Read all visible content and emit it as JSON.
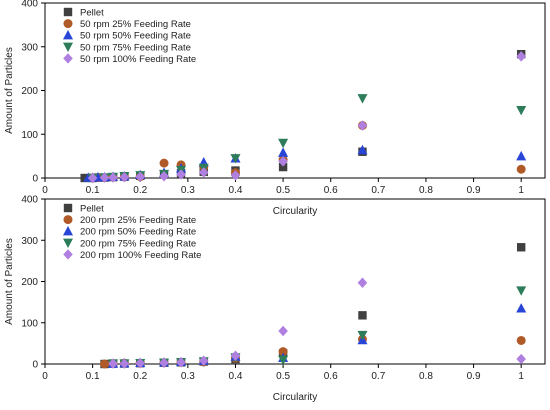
{
  "chart_data": [
    {
      "type": "scatter",
      "panel": "top",
      "title": "",
      "xlabel": "Circularity",
      "ylabel": "Amount of Particles",
      "xlim": [
        0,
        1.05
      ],
      "ylim": [
        0,
        400
      ],
      "xticks": [
        "0",
        "0.1",
        "0.2",
        "0.3",
        "0.4",
        "0.5",
        "0.6",
        "0.7",
        "0.8",
        "0.9",
        "1"
      ],
      "yticks": [
        "0",
        "100",
        "200",
        "300",
        "400"
      ],
      "grid": false,
      "legend_position": "top-left",
      "series": [
        {
          "name": "Pellet",
          "marker": "square",
          "color": "#404040",
          "points": [
            [
              0.0833,
              0
            ],
            [
              0.1,
              0
            ],
            [
              0.1111,
              1
            ],
            [
              0.125,
              1
            ],
            [
              0.1429,
              2
            ],
            [
              0.1667,
              3
            ],
            [
              0.2,
              5
            ],
            [
              0.25,
              8
            ],
            [
              0.2857,
              11
            ],
            [
              0.3333,
              14
            ],
            [
              0.4,
              17
            ],
            [
              0.5,
              25
            ],
            [
              0.6667,
              60
            ],
            [
              1.0,
              283
            ]
          ]
        },
        {
          "name": "50 rpm 25% Feeding Rate",
          "marker": "circle",
          "color": "#b05a28",
          "points": [
            [
              0.1,
              0
            ],
            [
              0.1111,
              1
            ],
            [
              0.125,
              1
            ],
            [
              0.1429,
              2
            ],
            [
              0.1667,
              2
            ],
            [
              0.2,
              3
            ],
            [
              0.25,
              34
            ],
            [
              0.2857,
              30
            ],
            [
              0.3333,
              26
            ],
            [
              0.4,
              12
            ],
            [
              0.5,
              42
            ],
            [
              0.6667,
              120
            ],
            [
              1.0,
              20
            ]
          ]
        },
        {
          "name": "50 rpm 50% Feeding Rate",
          "marker": "triangle-up",
          "color": "#2845d8",
          "points": [
            [
              0.0909,
              1
            ],
            [
              0.1,
              1
            ],
            [
              0.1111,
              2
            ],
            [
              0.125,
              2
            ],
            [
              0.1429,
              3
            ],
            [
              0.1667,
              4
            ],
            [
              0.2,
              7
            ],
            [
              0.25,
              12
            ],
            [
              0.2857,
              22
            ],
            [
              0.3333,
              36
            ],
            [
              0.4,
              45
            ],
            [
              0.5,
              58
            ],
            [
              0.6667,
              64
            ],
            [
              1.0,
              50
            ]
          ]
        },
        {
          "name": "50 rpm 75% Feeding Rate",
          "marker": "triangle-down",
          "color": "#2e7d5a",
          "points": [
            [
              0.1,
              0
            ],
            [
              0.125,
              1
            ],
            [
              0.1429,
              2
            ],
            [
              0.1667,
              4
            ],
            [
              0.2,
              6
            ],
            [
              0.25,
              9
            ],
            [
              0.2857,
              18
            ],
            [
              0.3333,
              23
            ],
            [
              0.4,
              45
            ],
            [
              0.5,
              80
            ],
            [
              0.6667,
              182
            ],
            [
              1.0,
              155
            ]
          ]
        },
        {
          "name": "50 rpm 100% Feeding Rate",
          "marker": "diamond",
          "color": "#b080e0",
          "points": [
            [
              0.1,
              0
            ],
            [
              0.125,
              1
            ],
            [
              0.1429,
              1
            ],
            [
              0.1667,
              2
            ],
            [
              0.2,
              3
            ],
            [
              0.25,
              4
            ],
            [
              0.2857,
              8
            ],
            [
              0.3333,
              13
            ],
            [
              0.4,
              6
            ],
            [
              0.5,
              38
            ],
            [
              0.6667,
              120
            ],
            [
              1.0,
              278
            ]
          ]
        }
      ]
    },
    {
      "type": "scatter",
      "panel": "bottom",
      "title": "",
      "xlabel": "Circularity",
      "ylabel": "Amount of Particles",
      "xlim": [
        0,
        1.05
      ],
      "ylim": [
        0,
        400
      ],
      "xticks": [
        "0",
        "0.1",
        "0.2",
        "0.3",
        "0.4",
        "0.5",
        "0.6",
        "0.7",
        "0.8",
        "0.9",
        "1"
      ],
      "yticks": [
        "0",
        "100",
        "200",
        "300",
        "400"
      ],
      "grid": false,
      "legend_position": "top-left",
      "series": [
        {
          "name": "Pellet",
          "marker": "square",
          "color": "#404040",
          "points": [
            [
              0.125,
              0
            ],
            [
              0.1429,
              1
            ],
            [
              0.1667,
              1
            ],
            [
              0.2,
              2
            ],
            [
              0.25,
              3
            ],
            [
              0.2857,
              4
            ],
            [
              0.3333,
              6
            ],
            [
              0.4,
              12
            ],
            [
              0.5,
              26
            ],
            [
              0.6667,
              118
            ],
            [
              1.0,
              283
            ]
          ]
        },
        {
          "name": "200 rpm 25% Feeding Rate",
          "marker": "circle",
          "color": "#b05a28",
          "points": [
            [
              0.125,
              0
            ],
            [
              0.1429,
              1
            ],
            [
              0.1667,
              2
            ],
            [
              0.2,
              2
            ],
            [
              0.25,
              3
            ],
            [
              0.2857,
              4
            ],
            [
              0.3333,
              5
            ],
            [
              0.4,
              14
            ],
            [
              0.5,
              30
            ],
            [
              0.6667,
              60
            ],
            [
              1.0,
              57
            ]
          ]
        },
        {
          "name": "200 rpm 50% Feeding Rate",
          "marker": "triangle-up",
          "color": "#2845d8",
          "points": [
            [
              0.1429,
              1
            ],
            [
              0.1667,
              2
            ],
            [
              0.2,
              3
            ],
            [
              0.25,
              4
            ],
            [
              0.2857,
              5
            ],
            [
              0.3333,
              8
            ],
            [
              0.4,
              18
            ],
            [
              0.5,
              15
            ],
            [
              0.6667,
              58
            ],
            [
              1.0,
              135
            ]
          ]
        },
        {
          "name": "200 rpm 75% Feeding Rate",
          "marker": "triangle-down",
          "color": "#2e7d5a",
          "points": [
            [
              0.1429,
              1
            ],
            [
              0.1667,
              1
            ],
            [
              0.2,
              2
            ],
            [
              0.25,
              3
            ],
            [
              0.2857,
              4
            ],
            [
              0.3333,
              6
            ],
            [
              0.4,
              16
            ],
            [
              0.5,
              10
            ],
            [
              0.6667,
              70
            ],
            [
              1.0,
              178
            ]
          ]
        },
        {
          "name": "200 rpm 100% Feeding Rate",
          "marker": "diamond",
          "color": "#b080e0",
          "points": [
            [
              0.1429,
              1
            ],
            [
              0.1667,
              1
            ],
            [
              0.2,
              2
            ],
            [
              0.25,
              3
            ],
            [
              0.2857,
              4
            ],
            [
              0.3333,
              8
            ],
            [
              0.4,
              20
            ],
            [
              0.5,
              80
            ],
            [
              0.6667,
              197
            ],
            [
              1.0,
              12
            ]
          ]
        }
      ]
    }
  ]
}
